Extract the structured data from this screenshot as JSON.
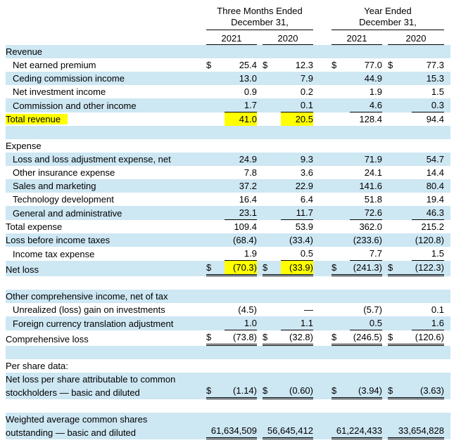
{
  "colors": {
    "row_blue": "#cde7f3",
    "highlight": "#ffff00",
    "rule": "#000000",
    "text": "#000000",
    "background": "#ffffff"
  },
  "header": {
    "groups": [
      {
        "line1": "Three Months Ended",
        "line2": "December 31,"
      },
      {
        "line1": "Year Ended",
        "line2": "December 31,"
      }
    ],
    "years": [
      "2021",
      "2020",
      "2021",
      "2020"
    ]
  },
  "rows": [
    {
      "type": "section",
      "label": "Revenue",
      "shade": "blue"
    },
    {
      "type": "data",
      "label": "Net earned premium",
      "indent": 1,
      "dollar": true,
      "values": [
        "25.4",
        "12.3",
        "77.0",
        "77.3"
      ],
      "shade": "white"
    },
    {
      "type": "data",
      "label": "Ceding commission income",
      "indent": 1,
      "values": [
        "13.0",
        "7.9",
        "44.9",
        "15.3"
      ],
      "shade": "blue"
    },
    {
      "type": "data",
      "label": "Net investment income",
      "indent": 1,
      "values": [
        "0.9",
        "0.2",
        "1.9",
        "1.5"
      ],
      "shade": "white"
    },
    {
      "type": "data",
      "label": "Commission and other income",
      "indent": 1,
      "values": [
        "1.7",
        "0.1",
        "4.6",
        "0.3"
      ],
      "shade": "blue",
      "rule": "single"
    },
    {
      "type": "data",
      "label": "Total revenue",
      "indent": 0,
      "values": [
        "41.0",
        "20.5",
        "128.4",
        "94.4"
      ],
      "shade": "white",
      "highlight_label": true,
      "highlight_cols": [
        0,
        1
      ]
    },
    {
      "type": "blank",
      "shade": "blue"
    },
    {
      "type": "section",
      "label": "Expense",
      "shade": "white"
    },
    {
      "type": "data",
      "label": "Loss and loss adjustment expense, net",
      "indent": 1,
      "values": [
        "24.9",
        "9.3",
        "71.9",
        "54.7"
      ],
      "shade": "blue"
    },
    {
      "type": "data",
      "label": "Other insurance expense",
      "indent": 1,
      "values": [
        "7.8",
        "3.6",
        "24.1",
        "14.4"
      ],
      "shade": "white"
    },
    {
      "type": "data",
      "label": "Sales and marketing",
      "indent": 1,
      "values": [
        "37.2",
        "22.9",
        "141.6",
        "80.4"
      ],
      "shade": "blue"
    },
    {
      "type": "data",
      "label": "Technology development",
      "indent": 1,
      "values": [
        "16.4",
        "6.4",
        "51.8",
        "19.4"
      ],
      "shade": "white"
    },
    {
      "type": "data",
      "label": "General and administrative",
      "indent": 1,
      "values": [
        "23.1",
        "11.7",
        "72.6",
        "46.3"
      ],
      "shade": "blue",
      "rule": "single"
    },
    {
      "type": "data",
      "label": "Total expense",
      "indent": 0,
      "values": [
        "109.4",
        "53.9",
        "362.0",
        "215.2"
      ],
      "shade": "white"
    },
    {
      "type": "data",
      "label": "Loss before income taxes",
      "indent": 0,
      "values": [
        "(68.4)",
        "(33.4)",
        "(233.6)",
        "(120.8)"
      ],
      "shade": "blue"
    },
    {
      "type": "data",
      "label": "Income tax expense",
      "indent": 1,
      "values": [
        "1.9",
        "0.5",
        "7.7",
        "1.5"
      ],
      "shade": "white",
      "rule": "single"
    },
    {
      "type": "data",
      "label": "Net loss",
      "indent": 0,
      "dollar": true,
      "values": [
        "(70.3)",
        "(33.9)",
        "(241.3)",
        "(122.3)"
      ],
      "shade": "blue",
      "rule": "double",
      "highlight_cols": [
        0,
        1
      ]
    },
    {
      "type": "blank",
      "shade": "white"
    },
    {
      "type": "section",
      "label": "Other comprehensive income, net of tax",
      "shade": "blue"
    },
    {
      "type": "data",
      "label": "Unrealized (loss) gain on investments",
      "indent": 1,
      "values": [
        "(4.5)",
        "—",
        "(5.7)",
        "0.1"
      ],
      "shade": "white"
    },
    {
      "type": "data",
      "label": "Foreign currency translation adjustment",
      "indent": 1,
      "values": [
        "1.0",
        "1.1",
        "0.5",
        "1.6"
      ],
      "shade": "blue",
      "rule": "single"
    },
    {
      "type": "data",
      "label": "Comprehensive loss",
      "indent": 0,
      "dollar": true,
      "values": [
        "(73.8)",
        "(32.8)",
        "(246.5)",
        "(120.6)"
      ],
      "shade": "white",
      "rule": "double"
    },
    {
      "type": "blank",
      "shade": "blue"
    },
    {
      "type": "section",
      "label": "Per share data:",
      "shade": "white"
    },
    {
      "type": "data",
      "label": "Net loss per share attributable to common\nstockholders — basic and diluted",
      "indent": 0,
      "dollar": true,
      "values": [
        "(1.14)",
        "(0.60)",
        "(3.94)",
        "(3.63)"
      ],
      "shade": "blue",
      "rule": "double",
      "twoline": true
    },
    {
      "type": "blank",
      "shade": "white"
    },
    {
      "type": "data",
      "label": "Weighted average common shares\noutstanding — basic and diluted",
      "indent": 0,
      "values": [
        "61,634,509",
        "56,645,412",
        "61,224,433",
        "33,654,828"
      ],
      "shade": "blue",
      "rule": "double",
      "twoline": true
    }
  ]
}
